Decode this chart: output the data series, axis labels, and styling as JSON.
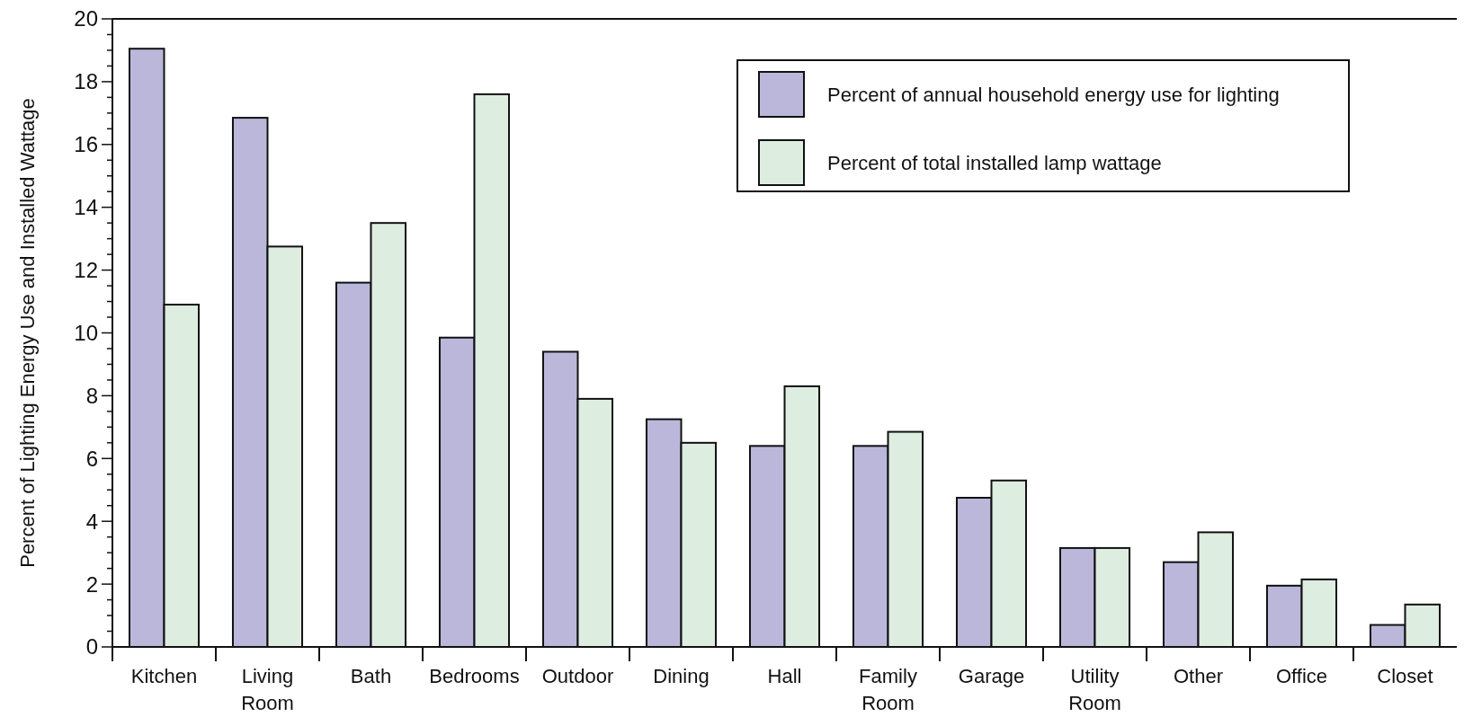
{
  "chart_data": {
    "type": "bar",
    "ylabel": "Percent of Lighting Energy Use and Installed Wattage",
    "categories": [
      "Kitchen",
      "Living Room",
      "Bath",
      "Bedrooms",
      "Outdoor",
      "Dining",
      "Hall",
      "Family Room",
      "Garage",
      "Utility Room",
      "Other",
      "Office",
      "Closet"
    ],
    "series": [
      {
        "name": "Percent of annual household energy use for lighting",
        "color": "#bbb7db",
        "values": [
          19.05,
          16.85,
          11.6,
          9.85,
          9.4,
          7.25,
          6.4,
          6.4,
          4.75,
          3.15,
          2.7,
          1.95,
          0.7
        ]
      },
      {
        "name": "Percent of total installed lamp wattage",
        "color": "#ddede0",
        "values": [
          10.9,
          12.75,
          13.5,
          17.6,
          7.9,
          6.5,
          8.3,
          6.85,
          5.3,
          3.15,
          3.65,
          2.15,
          1.35
        ]
      }
    ],
    "ylim": [
      0,
      20
    ],
    "yticks": [
      0,
      {
        "value": 0.5,
        "label": null
      },
      {
        "value": 1,
        "label": null
      },
      {
        "value": 1.5,
        "label": null
      },
      2,
      {
        "value": 2.5,
        "label": null
      },
      {
        "value": 3,
        "label": null
      },
      {
        "value": 3.5,
        "label": null
      },
      4,
      {
        "value": 4.5,
        "label": null
      },
      {
        "value": 5,
        "label": null
      },
      {
        "value": 5.5,
        "label": null
      },
      6,
      {
        "value": 6.5,
        "label": null
      },
      {
        "value": 7,
        "label": null
      },
      {
        "value": 7.5,
        "label": null
      },
      8,
      {
        "value": 8.5,
        "label": null
      },
      {
        "value": 9,
        "label": null
      },
      {
        "value": 9.5,
        "label": null
      },
      10,
      {
        "value": 10.5,
        "label": null
      },
      {
        "value": 11,
        "label": null
      },
      {
        "value": 11.5,
        "label": null
      },
      12,
      {
        "value": 12.5,
        "label": null
      },
      {
        "value": 13,
        "label": null
      },
      {
        "value": 13.5,
        "label": null
      },
      14,
      {
        "value": 14.5,
        "label": null
      },
      {
        "value": 15,
        "label": null
      },
      {
        "value": 15.5,
        "label": null
      },
      16,
      {
        "value": 16.5,
        "label": null
      },
      {
        "value": 17,
        "label": null
      },
      {
        "value": 17.5,
        "label": null
      },
      18,
      {
        "value": 18.5,
        "label": null
      },
      {
        "value": 19,
        "label": null
      },
      {
        "value": 19.5,
        "label": null
      },
      20
    ],
    "grid": false,
    "legend": "top right"
  }
}
